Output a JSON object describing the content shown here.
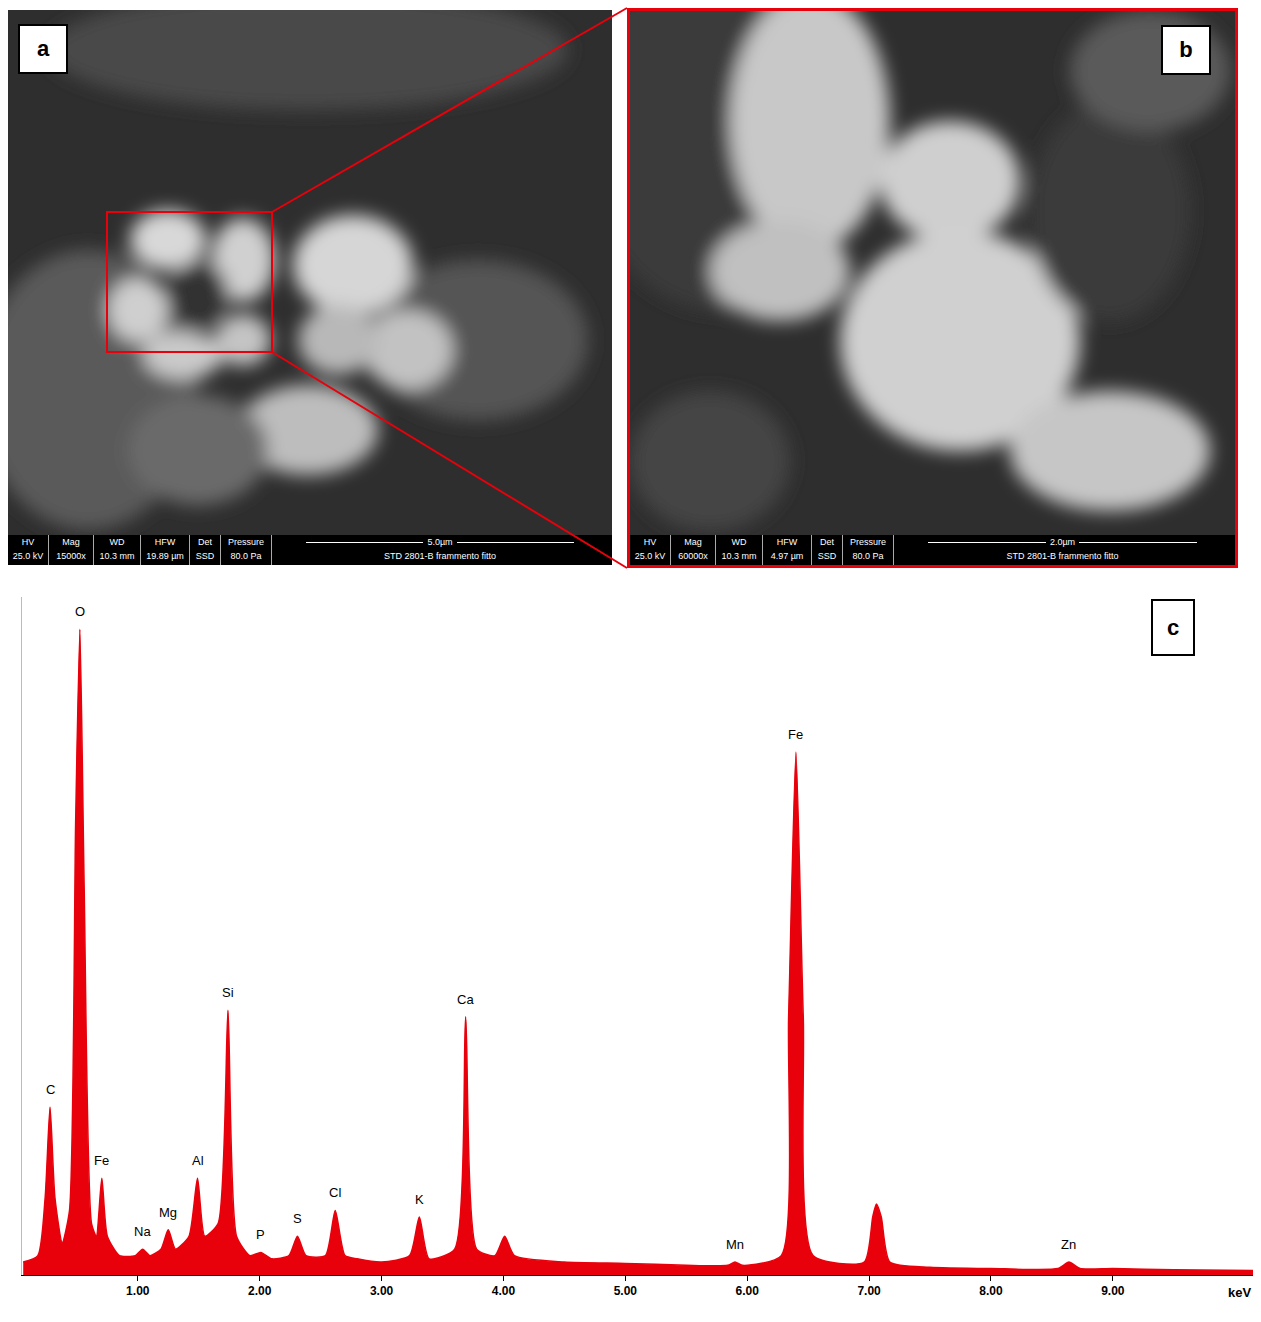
{
  "panels": [
    {
      "letter": "a",
      "info": {
        "headers": [
          "HV",
          "Mag",
          "WD",
          "HFW",
          "Det",
          "Pressure"
        ],
        "values": [
          "25.0 kV",
          "15000x",
          "10.3 mm",
          "19.89 µm",
          "SSD",
          "80.0 Pa"
        ],
        "scale_bar": "5.0µm",
        "sample": "STD 2801-B frammento fitto"
      }
    },
    {
      "letter": "b",
      "info": {
        "headers": [
          "HV",
          "Mag",
          "WD",
          "HFW",
          "Det",
          "Pressure"
        ],
        "values": [
          "25.0 kV",
          "60000x",
          "10.3 mm",
          "4.97 µm",
          "SSD",
          "80.0 Pa"
        ],
        "scale_bar": "2.0µm",
        "sample": "STD 2801-B frammento fitto"
      }
    }
  ],
  "chart_data": {
    "type": "area",
    "panel": "c",
    "color": "#e8000b",
    "xlabel": "keV",
    "x": [
      0.06,
      0.18,
      0.24,
      0.28,
      0.32,
      0.38,
      0.44,
      0.49,
      0.525,
      0.56,
      0.62,
      0.66,
      0.705,
      0.75,
      0.85,
      0.98,
      1.04,
      1.1,
      1.19,
      1.25,
      1.31,
      1.42,
      1.49,
      1.55,
      1.66,
      1.74,
      1.81,
      1.92,
      2.01,
      2.1,
      2.24,
      2.31,
      2.38,
      2.54,
      2.62,
      2.7,
      2.8,
      3.0,
      3.23,
      3.31,
      3.39,
      3.6,
      3.69,
      3.78,
      3.93,
      4.01,
      4.09,
      4.5,
      5.0,
      5.5,
      5.84,
      5.9,
      5.96,
      6.28,
      6.34,
      6.4,
      6.46,
      6.54,
      6.96,
      7.03,
      7.06,
      7.1,
      7.17,
      7.5,
      8.0,
      8.55,
      8.64,
      8.73,
      9.0,
      9.5,
      10.15
    ],
    "values": [
      2,
      3,
      12,
      26,
      12,
      5,
      10,
      70,
      100,
      60,
      8,
      6,
      15,
      6,
      3,
      3,
      4,
      3,
      4,
      7,
      4,
      6,
      15,
      6,
      8,
      41,
      6,
      3,
      3.5,
      2.5,
      3,
      6,
      3,
      3,
      10,
      3,
      2.5,
      2,
      3,
      9,
      2.5,
      4,
      40,
      4,
      3,
      6,
      3,
      2,
      1.8,
      1.5,
      1.5,
      2,
      1.5,
      3,
      40,
      81,
      40,
      3,
      2,
      9,
      11,
      9,
      2,
      1.2,
      1,
      1,
      2,
      1,
      1,
      0.8,
      0.7
    ],
    "xlim": [
      0.05,
      10.15
    ],
    "xticks": [
      {
        "value": 1,
        "label": "1.00"
      },
      {
        "value": 2,
        "label": "2.00"
      },
      {
        "value": 3,
        "label": "3.00"
      },
      {
        "value": 4,
        "label": "4.00"
      },
      {
        "value": 5,
        "label": "5.00"
      },
      {
        "value": 6,
        "label": "6.00"
      },
      {
        "value": 7,
        "label": "7.00"
      },
      {
        "value": 8,
        "label": "8.00"
      },
      {
        "value": 9,
        "label": "9.00"
      }
    ],
    "ylim": [
      0,
      105
    ],
    "tick_labels": "x",
    "grid": false,
    "peak_labels": [
      {
        "label": "C",
        "x": 0.28,
        "y": 26
      },
      {
        "label": "O",
        "x": 0.525,
        "y": 100
      },
      {
        "label": "Fe",
        "x": 0.705,
        "y": 15
      },
      {
        "label": "Na",
        "x": 1.04,
        "y": 4
      },
      {
        "label": "Mg",
        "x": 1.25,
        "y": 7
      },
      {
        "label": "Al",
        "x": 1.49,
        "y": 15
      },
      {
        "label": "Si",
        "x": 1.74,
        "y": 41
      },
      {
        "label": "P",
        "x": 2.01,
        "y": 3.5
      },
      {
        "label": "S",
        "x": 2.31,
        "y": 6
      },
      {
        "label": "Cl",
        "x": 2.62,
        "y": 10
      },
      {
        "label": "K",
        "x": 3.31,
        "y": 9
      },
      {
        "label": "Ca",
        "x": 3.69,
        "y": 40
      },
      {
        "label": "Mn",
        "x": 5.9,
        "y": 2
      },
      {
        "label": "Fe",
        "x": 6.4,
        "y": 81
      },
      {
        "label": "Zn",
        "x": 8.64,
        "y": 2
      }
    ]
  }
}
